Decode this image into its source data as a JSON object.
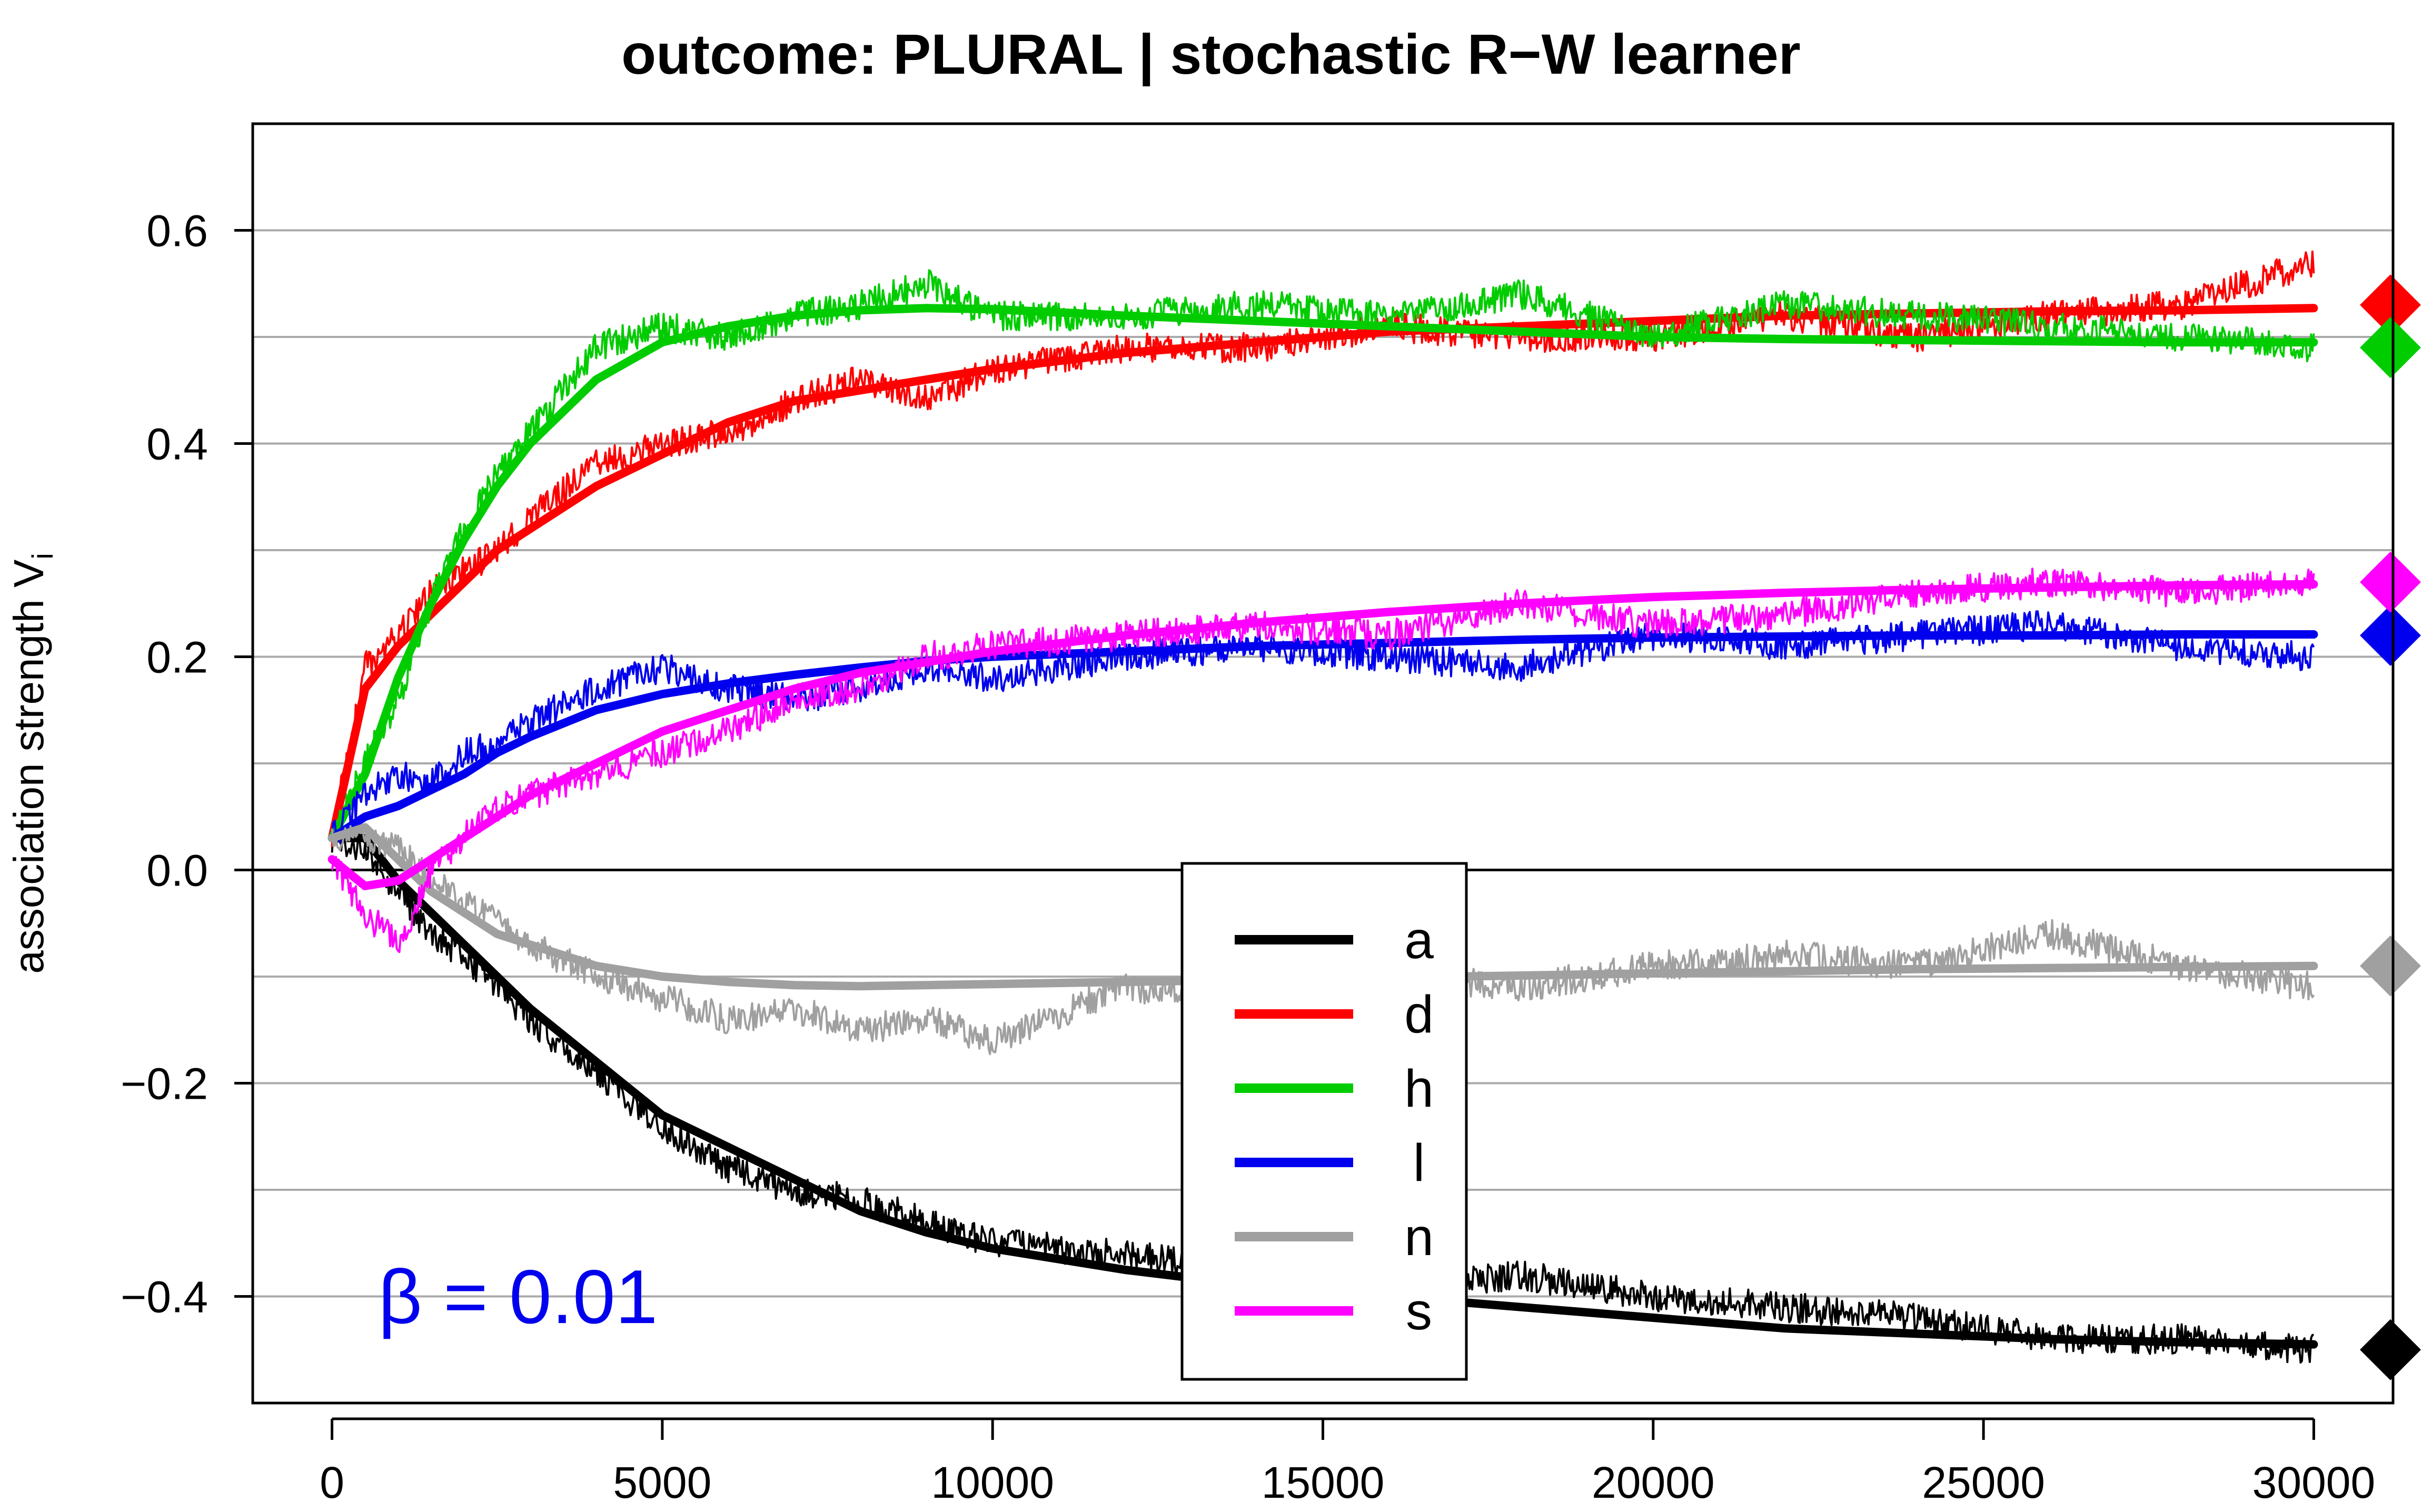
{
  "chart_data": {
    "type": "line",
    "title": "outcome: PLURAL | stochastic R−W learner",
    "xlabel": "",
    "ylabel_main": "association strength V",
    "ylabel_sub": "i",
    "xlim": [
      -1200,
      31200
    ],
    "ylim": [
      -0.5,
      0.7
    ],
    "x_ticks": [
      0,
      5000,
      10000,
      15000,
      20000,
      25000,
      30000
    ],
    "x_tick_labels": [
      "0",
      "5000",
      "10000",
      "15000",
      "20000",
      "25000",
      "30000"
    ],
    "y_ticks": [
      -0.4,
      -0.2,
      0.0,
      0.2,
      0.4,
      0.6
    ],
    "y_tick_labels": [
      "−0.4",
      "−0.2",
      "0.0",
      "0.2",
      "0.4",
      "0.6"
    ],
    "gridlines_y": [
      -0.4,
      -0.3,
      -0.2,
      -0.1,
      0.1,
      0.2,
      0.3,
      0.4,
      0.5,
      0.6
    ],
    "zero_line": 0.0,
    "annotation": "β = 0.01",
    "annotation_color": "#0000ee",
    "legend_position": "center-bottom",
    "x": [
      0,
      500,
      1000,
      1500,
      2000,
      2500,
      3000,
      4000,
      5000,
      6000,
      7000,
      8000,
      9000,
      10000,
      12000,
      14000,
      16000,
      18000,
      20000,
      22000,
      24000,
      26000,
      28000,
      30000
    ],
    "series": [
      {
        "name": "a",
        "color": "#000000",
        "smooth": [
          0.03,
          0.03,
          -0.01,
          -0.04,
          -0.07,
          -0.1,
          -0.13,
          -0.18,
          -0.23,
          -0.26,
          -0.29,
          -0.32,
          -0.34,
          -0.355,
          -0.375,
          -0.39,
          -0.4,
          -0.41,
          -0.42,
          -0.43,
          -0.435,
          -0.44,
          -0.443,
          -0.445
        ],
        "noisy": [
          0.03,
          0.02,
          -0.02,
          -0.06,
          -0.08,
          -0.11,
          -0.14,
          -0.19,
          -0.24,
          -0.28,
          -0.3,
          -0.31,
          -0.33,
          -0.35,
          -0.36,
          -0.38,
          -0.39,
          -0.38,
          -0.4,
          -0.41,
          -0.42,
          -0.44,
          -0.44,
          -0.45
        ],
        "asymptote": -0.45
      },
      {
        "name": "d",
        "color": "#ff0000",
        "smooth": [
          0.03,
          0.17,
          0.21,
          0.24,
          0.27,
          0.3,
          0.32,
          0.36,
          0.39,
          0.42,
          0.44,
          0.45,
          0.46,
          0.47,
          0.485,
          0.495,
          0.505,
          0.51,
          0.515,
          0.52,
          0.522,
          0.524,
          0.525,
          0.527
        ],
        "noisy": [
          0.03,
          0.19,
          0.22,
          0.26,
          0.28,
          0.3,
          0.33,
          0.38,
          0.4,
          0.41,
          0.44,
          0.46,
          0.44,
          0.47,
          0.49,
          0.49,
          0.51,
          0.5,
          0.5,
          0.52,
          0.5,
          0.52,
          0.53,
          0.57
        ],
        "asymptote": 0.53
      },
      {
        "name": "h",
        "color": "#00cc00",
        "smooth": [
          0.03,
          0.09,
          0.18,
          0.25,
          0.31,
          0.36,
          0.4,
          0.46,
          0.495,
          0.51,
          0.52,
          0.525,
          0.527,
          0.526,
          0.52,
          0.515,
          0.51,
          0.505,
          0.5,
          0.498,
          0.497,
          0.496,
          0.495,
          0.495
        ],
        "noisy": [
          0.03,
          0.1,
          0.16,
          0.25,
          0.32,
          0.37,
          0.41,
          0.49,
          0.51,
          0.5,
          0.52,
          0.53,
          0.55,
          0.52,
          0.52,
          0.53,
          0.52,
          0.54,
          0.5,
          0.53,
          0.52,
          0.51,
          0.5,
          0.49
        ],
        "asymptote": 0.49
      },
      {
        "name": "l",
        "color": "#0000ee",
        "smooth": [
          0.03,
          0.05,
          0.06,
          0.075,
          0.09,
          0.11,
          0.125,
          0.15,
          0.165,
          0.175,
          0.183,
          0.19,
          0.196,
          0.2,
          0.205,
          0.21,
          0.213,
          0.216,
          0.218,
          0.219,
          0.22,
          0.22,
          0.221,
          0.221
        ],
        "noisy": [
          0.03,
          0.07,
          0.09,
          0.08,
          0.11,
          0.12,
          0.14,
          0.17,
          0.19,
          0.17,
          0.16,
          0.17,
          0.19,
          0.18,
          0.2,
          0.21,
          0.2,
          0.19,
          0.22,
          0.21,
          0.22,
          0.23,
          0.21,
          0.2
        ],
        "asymptote": 0.22
      },
      {
        "name": "n",
        "color": "#a0a0a0",
        "smooth": [
          0.03,
          0.04,
          0.01,
          -0.02,
          -0.04,
          -0.06,
          -0.07,
          -0.09,
          -0.1,
          -0.105,
          -0.108,
          -0.109,
          -0.108,
          -0.107,
          -0.105,
          -0.103,
          -0.101,
          -0.099,
          -0.097,
          -0.095,
          -0.093,
          -0.092,
          -0.091,
          -0.09
        ],
        "noisy": [
          0.03,
          0.03,
          0.02,
          -0.01,
          -0.03,
          -0.05,
          -0.07,
          -0.1,
          -0.12,
          -0.14,
          -0.13,
          -0.15,
          -0.14,
          -0.16,
          -0.11,
          -0.12,
          -0.1,
          -0.11,
          -0.09,
          -0.08,
          -0.09,
          -0.06,
          -0.09,
          -0.11
        ],
        "asymptote": -0.09
      },
      {
        "name": "s",
        "color": "#ff00ff",
        "smooth": [
          0.01,
          -0.015,
          -0.01,
          0.01,
          0.03,
          0.05,
          0.07,
          0.1,
          0.13,
          0.15,
          0.17,
          0.185,
          0.195,
          0.205,
          0.22,
          0.232,
          0.242,
          0.25,
          0.256,
          0.26,
          0.263,
          0.265,
          0.267,
          0.268
        ],
        "noisy": [
          0.01,
          -0.04,
          -0.07,
          0.0,
          0.03,
          0.06,
          0.07,
          0.09,
          0.11,
          0.13,
          0.16,
          0.17,
          0.2,
          0.21,
          0.22,
          0.23,
          0.22,
          0.25,
          0.23,
          0.24,
          0.26,
          0.27,
          0.26,
          0.27
        ],
        "asymptote": 0.27
      }
    ]
  }
}
